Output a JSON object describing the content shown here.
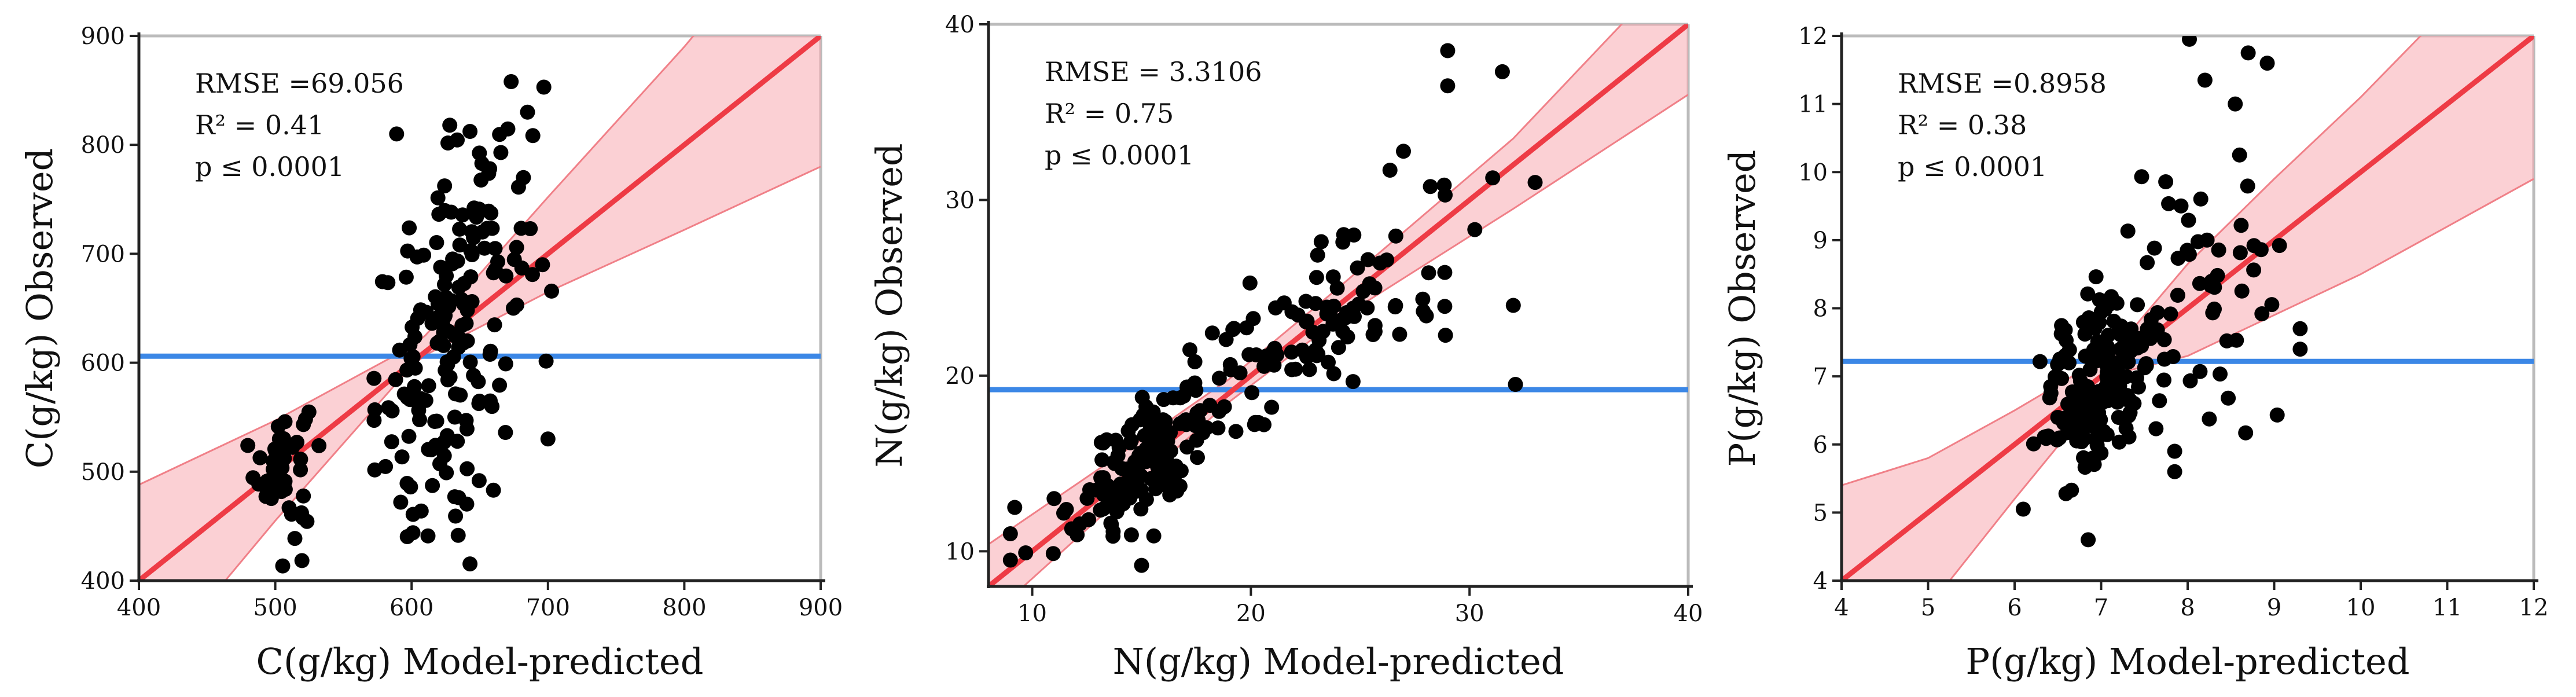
{
  "chart_data": [
    {
      "type": "scatter",
      "xlabel": "C(g/kg)  Model-predicted",
      "ylabel": "C(g/kg) Observed",
      "xlim": [
        400,
        900
      ],
      "ylim": [
        400,
        900
      ],
      "xticks": [
        400,
        500,
        600,
        700,
        800,
        900
      ],
      "yticks": [
        400,
        500,
        600,
        700,
        800,
        900
      ],
      "stats": [
        "RMSE =69.056",
        "R² = 0.41",
        "p ≤ 0.0001"
      ],
      "mean_line": 606,
      "fit_line": [
        [
          400,
          400
        ],
        [
          900,
          900
        ]
      ],
      "ci_band": {
        "x": [
          400,
          500,
          600,
          610,
          700,
          800,
          900
        ],
        "lower": [
          305,
          455,
          597,
          607,
          665,
          722,
          780
        ],
        "upper": [
          488,
          547,
          615,
          625,
          752,
          890,
          1040
        ]
      },
      "colors": {
        "points": "#000000",
        "fit": "#ee3b45",
        "band": "#f7a9b1",
        "band_edge": "#f08088",
        "mean": "#3b87e6",
        "frame": "#bbbbbb",
        "axis": "#222222"
      },
      "clusters": [
        {
          "n": 50,
          "cx": 505,
          "cy": 505,
          "sx": 10,
          "sy": 32,
          "r": 0
        },
        {
          "n": 175,
          "cx": 630,
          "cy": 630,
          "sx": 28,
          "sy": 85,
          "r": 0.45
        }
      ],
      "extra_points": [
        [
          589,
          810
        ],
        [
          673,
          858
        ],
        [
          697,
          853
        ],
        [
          685,
          830
        ],
        [
          628,
          818
        ],
        [
          612,
          441
        ],
        [
          601,
          444
        ],
        [
          660,
          483
        ],
        [
          592,
          472
        ],
        [
          700,
          530
        ],
        [
          696,
          690
        ],
        [
          682,
          770
        ]
      ]
    },
    {
      "type": "scatter",
      "xlabel": "N(g/kg)  Model-predicted",
      "ylabel": "N(g/kg) Observed",
      "xlim": [
        8,
        40
      ],
      "ylim": [
        8,
        40
      ],
      "xticks": [
        10,
        20,
        30,
        40
      ],
      "yticks": [
        10,
        20,
        30,
        40
      ],
      "stats": [
        "RMSE = 3.3106",
        "R² = 0.75",
        "p ≤ 0.0001"
      ],
      "mean_line": 19.2,
      "fit_line": [
        [
          8,
          8
        ],
        [
          40,
          40
        ]
      ],
      "ci_band": {
        "x": [
          8,
          16,
          19,
          24,
          32,
          40
        ],
        "lower": [
          6.2,
          15.2,
          18.5,
          23.2,
          29.5,
          36
        ],
        "upper": [
          10.4,
          17.2,
          19.8,
          25.0,
          33.5,
          44
        ]
      },
      "colors": {
        "points": "#000000",
        "fit": "#ee3b45",
        "band": "#f7a9b1",
        "band_edge": "#f08088",
        "mean": "#3b87e6",
        "frame": "#bbbbbb",
        "axis": "#222222"
      },
      "clusters": [
        {
          "n": 130,
          "cx": 15,
          "cy": 15,
          "sx": 1.6,
          "sy": 2.2,
          "r": 0.6
        },
        {
          "n": 120,
          "cx": 22,
          "cy": 22,
          "sx": 4.0,
          "sy": 4.2,
          "r": 0.82
        }
      ],
      "extra_points": [
        [
          9,
          9.5
        ],
        [
          9,
          11
        ],
        [
          9.2,
          12.5
        ],
        [
          29,
          38.5
        ],
        [
          29,
          36.5
        ],
        [
          31.5,
          37.3
        ],
        [
          32.1,
          19.5
        ],
        [
          32,
          24
        ],
        [
          33,
          31
        ],
        [
          28.9,
          22.3
        ],
        [
          15,
          9.2
        ],
        [
          11,
          13
        ]
      ]
    },
    {
      "type": "scatter",
      "xlabel": "P(g/kg)  Model-predicted",
      "ylabel": "P(g/kg) Observed",
      "xlim": [
        4,
        12
      ],
      "ylim": [
        4,
        12
      ],
      "xticks": [
        4,
        5,
        6,
        7,
        8,
        9,
        10,
        11,
        12
      ],
      "yticks": [
        4,
        5,
        6,
        7,
        8,
        9,
        10,
        11,
        12
      ],
      "stats": [
        "RMSE =0.8958",
        "R² = 0.38",
        "p ≤ 0.0001"
      ],
      "mean_line": 7.22,
      "fit_line": [
        [
          4,
          4
        ],
        [
          12,
          12
        ]
      ],
      "ci_band": {
        "x": [
          4,
          5,
          6,
          7,
          7.2,
          8,
          9,
          10,
          11,
          12
        ],
        "lower": [
          2.0,
          3.6,
          5.2,
          6.75,
          7.05,
          7.3,
          7.9,
          8.5,
          9.2,
          9.9
        ],
        "upper": [
          5.4,
          5.8,
          6.5,
          7.25,
          7.45,
          8.65,
          9.9,
          11.1,
          12.4,
          13.6
        ]
      },
      "colors": {
        "points": "#000000",
        "fit": "#ee3b45",
        "band": "#f7a9b1",
        "band_edge": "#f08088",
        "mean": "#3b87e6",
        "frame": "#bbbbbb",
        "axis": "#222222"
      },
      "clusters": [
        {
          "n": 190,
          "cx": 7.0,
          "cy": 6.9,
          "sx": 0.33,
          "sy": 0.65,
          "r": 0.35
        },
        {
          "n": 45,
          "cx": 8.2,
          "cy": 8.0,
          "sx": 0.5,
          "sy": 1.2,
          "r": 0.2
        }
      ],
      "extra_points": [
        [
          8.02,
          11.95
        ],
        [
          8.7,
          11.75
        ],
        [
          8.92,
          11.6
        ],
        [
          8.55,
          11.0
        ],
        [
          8.2,
          11.35
        ],
        [
          8.6,
          10.25
        ],
        [
          6.85,
          4.6
        ],
        [
          6.1,
          5.05
        ],
        [
          9.3,
          7.7
        ],
        [
          9.3,
          7.4
        ],
        [
          7.85,
          5.6
        ],
        [
          7.85,
          5.9
        ]
      ]
    }
  ]
}
